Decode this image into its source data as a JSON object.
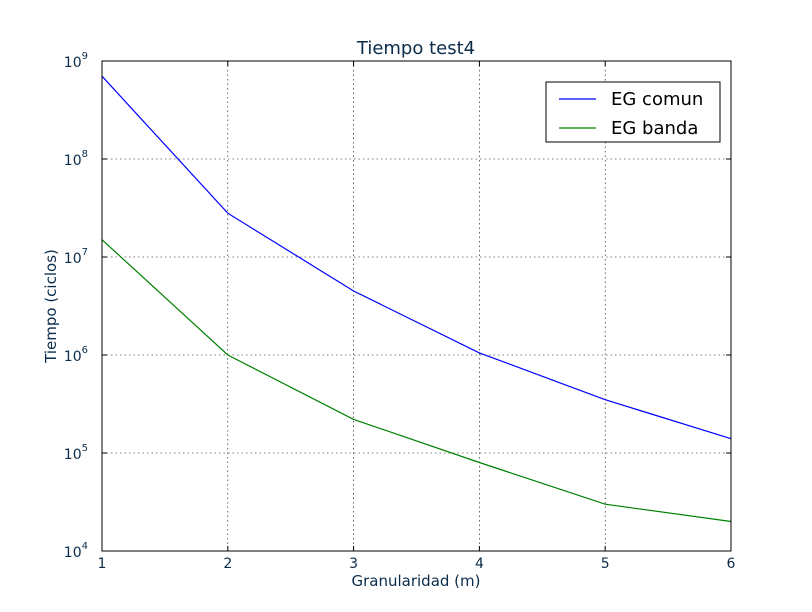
{
  "chart_data": {
    "type": "line",
    "title": "Tiempo test4",
    "xlabel": "Granularidad (m)",
    "ylabel": "Tiempo (ciclos)",
    "x": [
      1,
      2,
      3,
      4,
      5,
      6
    ],
    "xlim": [
      1,
      6
    ],
    "xticks": [
      "1",
      "2",
      "3",
      "4",
      "5",
      "6"
    ],
    "yscale": "log",
    "ylim": [
      10000,
      1000000000
    ],
    "yticks": [
      {
        "base": "10",
        "exp": "4",
        "value": 10000
      },
      {
        "base": "10",
        "exp": "5",
        "value": 100000
      },
      {
        "base": "10",
        "exp": "6",
        "value": 1000000
      },
      {
        "base": "10",
        "exp": "7",
        "value": 10000000
      },
      {
        "base": "10",
        "exp": "8",
        "value": 100000000
      },
      {
        "base": "10",
        "exp": "9",
        "value": 1000000000
      }
    ],
    "grid": true,
    "legend_position": "top-right",
    "series": [
      {
        "name": "EG comun",
        "color": "#0000ff",
        "values": [
          700000000,
          28000000,
          4500000,
          1050000,
          350000,
          140000
        ]
      },
      {
        "name": "EG banda",
        "color": "#008000",
        "values": [
          15000000,
          1000000,
          220000,
          80000,
          30000,
          20000
        ]
      }
    ]
  }
}
